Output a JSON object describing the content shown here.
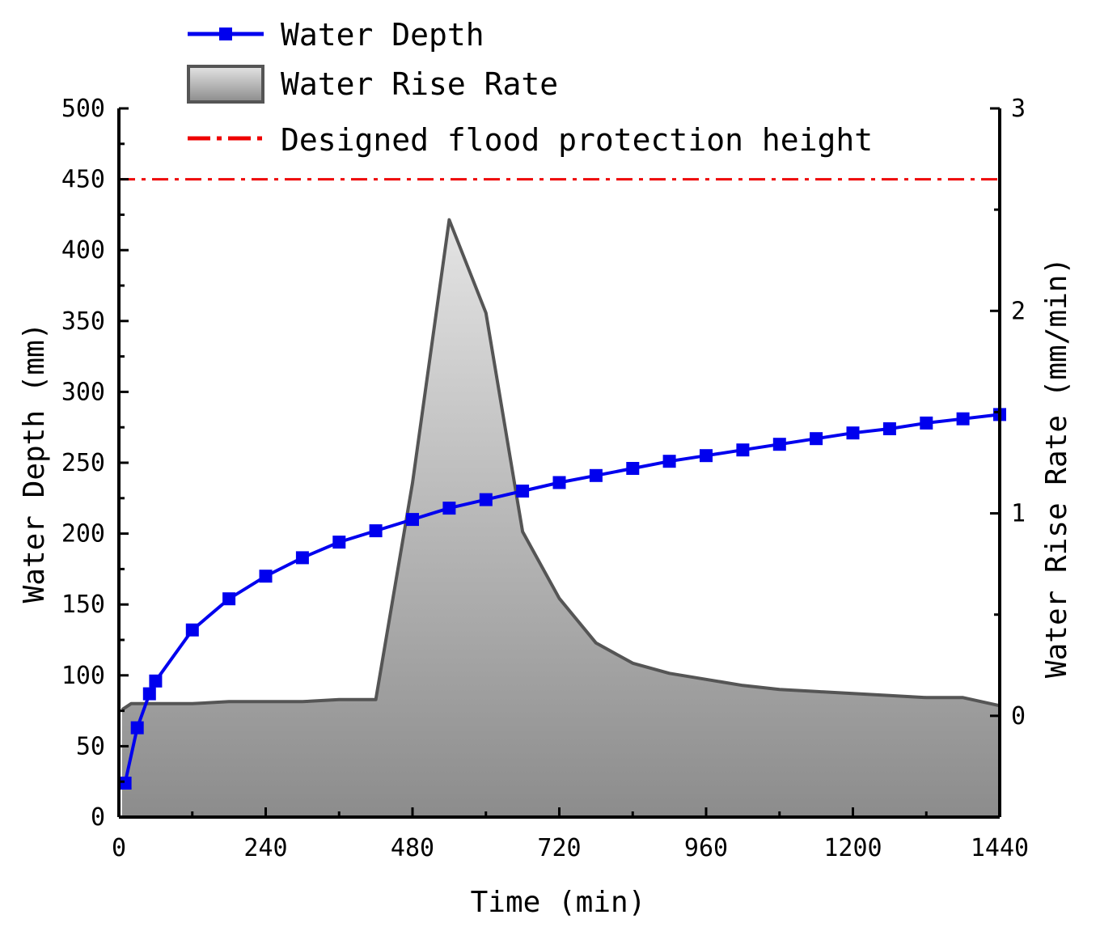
{
  "chart_data": {
    "type": "line",
    "xlabel": "Time (min)",
    "ylabel_left": "Water Depth (mm)",
    "ylabel_right": "Water Rise Rate (mm/min)",
    "xlim": [
      0,
      1440
    ],
    "ylim_left": [
      0,
      500
    ],
    "ylim_right": [
      -0.5,
      3
    ],
    "x_ticks": [
      0,
      240,
      480,
      720,
      960,
      1200,
      1440
    ],
    "y_left_ticks": [
      0,
      50,
      100,
      150,
      200,
      250,
      300,
      350,
      400,
      450,
      500
    ],
    "y_right_ticks": [
      0,
      1,
      2,
      3
    ],
    "legend_location": "top-left",
    "series": [
      {
        "name": "Water Depth",
        "kind": "line-with-square-markers",
        "axis": "left",
        "color": "#0000ee",
        "x": [
          10,
          30,
          50,
          60,
          120,
          180,
          240,
          300,
          360,
          420,
          480,
          540,
          600,
          660,
          720,
          780,
          840,
          900,
          960,
          1020,
          1080,
          1140,
          1200,
          1260,
          1320,
          1380,
          1440
        ],
        "values": [
          24,
          63,
          87,
          96,
          132,
          154,
          170,
          183,
          194,
          202,
          210,
          218,
          224,
          230,
          236,
          241,
          246,
          251,
          255,
          259,
          263,
          267,
          271,
          274,
          278,
          281,
          284
        ]
      },
      {
        "name": "Water Rise Rate",
        "kind": "area",
        "axis": "right",
        "line_color": "#555555",
        "fill_top": "#e4e4e4",
        "fill_bottom": "#8c8c8c",
        "x": [
          5,
          20,
          60,
          120,
          180,
          240,
          300,
          360,
          420,
          480,
          540,
          600,
          660,
          720,
          780,
          840,
          900,
          960,
          1020,
          1080,
          1140,
          1200,
          1260,
          1320,
          1380,
          1440
        ],
        "values": [
          0.03,
          0.06,
          0.06,
          0.06,
          0.07,
          0.07,
          0.07,
          0.08,
          0.08,
          1.15,
          2.45,
          1.99,
          0.91,
          0.58,
          0.36,
          0.26,
          0.21,
          0.18,
          0.15,
          0.13,
          0.12,
          0.11,
          0.1,
          0.09,
          0.09,
          0.05
        ]
      },
      {
        "name": "Designed flood protection height",
        "kind": "dash-dot-line",
        "axis": "left",
        "color": "#ee0000",
        "value": 450
      }
    ]
  }
}
